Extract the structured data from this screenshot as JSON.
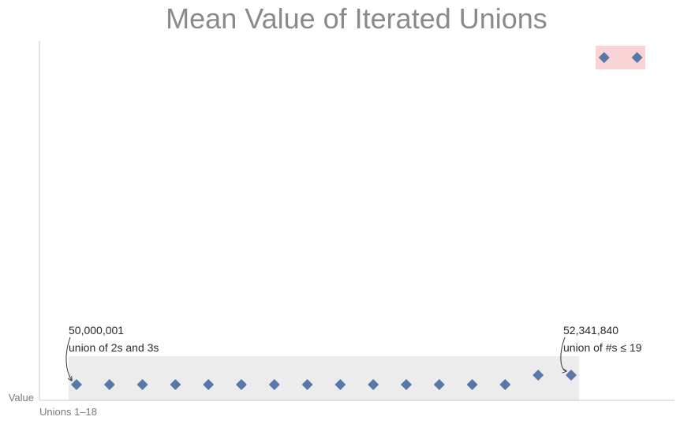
{
  "chart_data": {
    "type": "scatter",
    "title": "Mean Value of Iterated Unions",
    "xlabel": "Unions 1–18",
    "ylabel": "Value",
    "grid": false,
    "legend": "none",
    "marker": "diamond",
    "color": "#5878aa",
    "highlight_low_color": "#ececec",
    "highlight_high_color": "#fad4d4",
    "points": [
      {
        "x": 1,
        "y": 50000001
      },
      {
        "x": 2,
        "y": 50000001
      },
      {
        "x": 3,
        "y": 50000001
      },
      {
        "x": 4,
        "y": 50000001
      },
      {
        "x": 5,
        "y": 50000001
      },
      {
        "x": 6,
        "y": 50000001
      },
      {
        "x": 7,
        "y": 50000001
      },
      {
        "x": 8,
        "y": 50000001
      },
      {
        "x": 9,
        "y": 50000001
      },
      {
        "x": 10,
        "y": 50000001
      },
      {
        "x": 11,
        "y": 50000200
      },
      {
        "x": 12,
        "y": 50000200
      },
      {
        "x": 13,
        "y": 50000300
      },
      {
        "x": 14,
        "y": 50000500
      },
      {
        "x": 15,
        "y": 52341000
      },
      {
        "x": 16,
        "y": 52341840
      },
      {
        "x": 17,
        "y": 2000000000
      },
      {
        "x": 18,
        "y": 2000000000
      }
    ],
    "annotations": [
      {
        "x": 1,
        "value_label": "50,000,001",
        "text": "union of 2s and 3s"
      },
      {
        "x": 16,
        "value_label": "52,341,840",
        "text": "union of #s ≤ 19"
      }
    ]
  }
}
